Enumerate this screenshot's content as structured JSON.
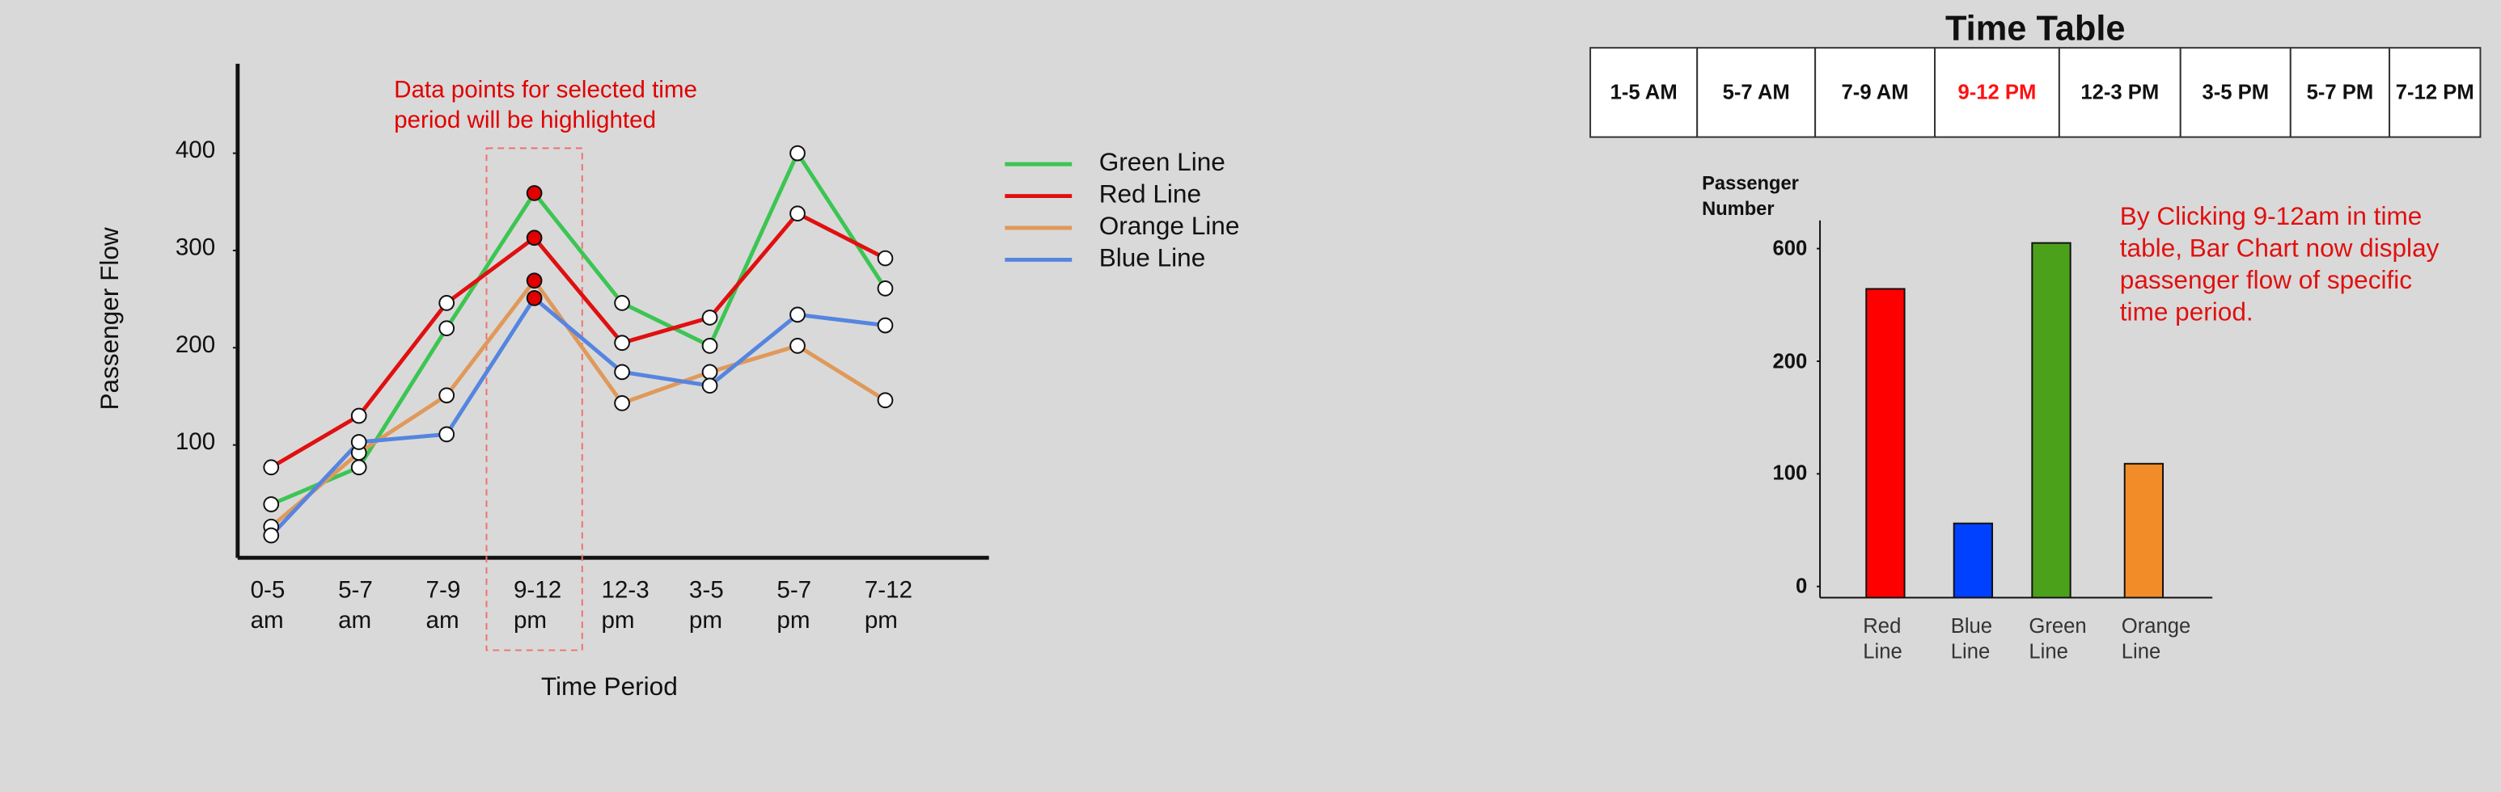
{
  "chart_data": [
    {
      "type": "line",
      "x_label": "Time Period",
      "y_label": "Passenger Flow",
      "annotation": "Data points for selected time period will be highlighted",
      "categories": [
        "0-5 am",
        "5-7 am",
        "7-9 am",
        "9-12 pm",
        "12-3 pm",
        "3-5 pm",
        "5-7 pm",
        "7-12 pm"
      ],
      "highlight": "9-12 pm",
      "highlight_color": "#e00000",
      "series": [
        {
          "name": "Green Line",
          "color": "#3cc552",
          "values": [
            39,
            77,
            220,
            359,
            246,
            202,
            400,
            261
          ]
        },
        {
          "name": "Red Line",
          "color": "#e01010",
          "values": [
            77,
            130,
            246,
            313,
            205,
            231,
            338,
            292
          ]
        },
        {
          "name": "Orange Line",
          "color": "#e0995a",
          "values": [
            16,
            92,
            151,
            269,
            143,
            175,
            202,
            146
          ]
        },
        {
          "name": "Blue Line",
          "color": "#5585e0",
          "values": [
            7,
            103,
            111,
            251,
            175,
            161,
            234,
            223
          ]
        }
      ],
      "ylim": [
        -16,
        492
      ],
      "yticks": [
        100,
        200,
        300,
        400
      ],
      "legend": "right"
    },
    {
      "type": "bar",
      "y_label": "Passenger Number",
      "annotation": "By Clicking 9-12am in time table, Bar Chart now display passenger flow of specific time period.",
      "categories": [
        "Red Line",
        "Blue Line",
        "Green Line",
        "Orange Line"
      ],
      "values": [
        457,
        56,
        620,
        109
      ],
      "colors": [
        "#ff0000",
        "#0040ff",
        "#4ca11a",
        "#f28c28"
      ],
      "ylim": [
        0,
        700
      ],
      "yticks": [
        0,
        100,
        200,
        600
      ]
    }
  ],
  "time_table": {
    "title": "Time Table",
    "slots": [
      "1-5 AM",
      "5-7 AM",
      "7-9 AM",
      "9-12 PM",
      "12-3 PM",
      "3-5 PM",
      "5-7 PM",
      "7-12 PM"
    ],
    "selected": "9-12 PM"
  }
}
